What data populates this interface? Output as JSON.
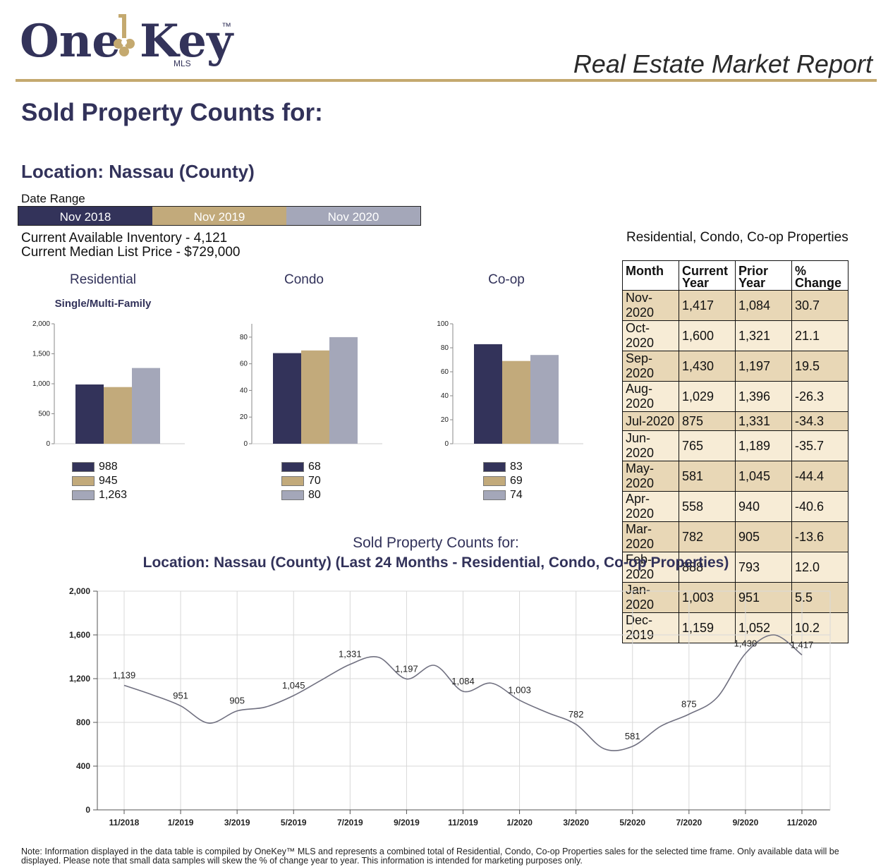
{
  "brand": {
    "name_part1": "One",
    "name_part2": "Key",
    "trademark": "™",
    "mls": "MLS"
  },
  "report_title": "Real Estate Market Report",
  "page_title": "Sold Property Counts for:",
  "location_line": "Location: Nassau (County)",
  "date_range": {
    "label": "Date Range",
    "periods": [
      {
        "label": "Nov 2018",
        "color": "#33335a"
      },
      {
        "label": "Nov 2019",
        "color": "#c2aa7b"
      },
      {
        "label": "Nov 2020",
        "color": "#a4a7b9"
      }
    ]
  },
  "inventory_line": "Current Available Inventory - 4,121",
  "median_price_line": "Current Median List Price - $729,000",
  "colors": {
    "navy": "#33335a",
    "tan": "#c2aa7b",
    "gray": "#a4a7b9",
    "gold_rule": "#c4a96f"
  },
  "chart_data": [
    {
      "type": "bar",
      "title": "Residential",
      "subtitle": "Single/Multi-Family",
      "categories": [
        "Nov 2018",
        "Nov 2019",
        "Nov 2020"
      ],
      "values": [
        988,
        945,
        1263
      ],
      "value_labels": [
        "988",
        "945",
        "1,263"
      ],
      "ylim": [
        0,
        2000
      ],
      "yticks": [
        0,
        500,
        1000,
        1500,
        2000
      ],
      "ytick_labels": [
        "0",
        "500",
        "1,000",
        "1,500",
        "2,000"
      ]
    },
    {
      "type": "bar",
      "title": "Condo",
      "subtitle": "",
      "categories": [
        "Nov 2018",
        "Nov 2019",
        "Nov 2020"
      ],
      "values": [
        68,
        70,
        80
      ],
      "value_labels": [
        "68",
        "70",
        "80"
      ],
      "ylim": [
        0,
        90
      ],
      "yticks": [
        0,
        20,
        40,
        60,
        80
      ],
      "ytick_labels": [
        "0",
        "20",
        "40",
        "60",
        "80"
      ]
    },
    {
      "type": "bar",
      "title": "Co-op",
      "subtitle": "",
      "categories": [
        "Nov 2018",
        "Nov 2019",
        "Nov 2020"
      ],
      "values": [
        83,
        69,
        74
      ],
      "value_labels": [
        "83",
        "69",
        "74"
      ],
      "ylim": [
        0,
        100
      ],
      "yticks": [
        0,
        20,
        40,
        60,
        80,
        100
      ],
      "ytick_labels": [
        "0",
        "20",
        "40",
        "60",
        "80",
        "100"
      ]
    },
    {
      "type": "table",
      "caption": "Residential, Condo, Co-op Properties",
      "columns": [
        "Month",
        "Current Year",
        "Prior Year",
        "% Change"
      ],
      "rows": [
        [
          "Nov-2020",
          "1,417",
          "1,084",
          "30.7"
        ],
        [
          "Oct-2020",
          "1,600",
          "1,321",
          "21.1"
        ],
        [
          "Sep-2020",
          "1,430",
          "1,197",
          "19.5"
        ],
        [
          "Aug-2020",
          "1,029",
          "1,396",
          "-26.3"
        ],
        [
          "Jul-2020",
          "875",
          "1,331",
          "-34.3"
        ],
        [
          "Jun-2020",
          "765",
          "1,189",
          "-35.7"
        ],
        [
          "May-2020",
          "581",
          "1,045",
          "-44.4"
        ],
        [
          "Apr-2020",
          "558",
          "940",
          "-40.6"
        ],
        [
          "Mar-2020",
          "782",
          "905",
          "-13.6"
        ],
        [
          "Feb-2020",
          "888",
          "793",
          "12.0"
        ],
        [
          "Jan-2020",
          "1,003",
          "951",
          "5.5"
        ],
        [
          "Dec-2019",
          "1,159",
          "1,052",
          "10.2"
        ]
      ]
    },
    {
      "type": "line",
      "title": "Sold Property Counts for:",
      "subtitle": "Location: Nassau (County) (Last 24 Months - Residential, Condo, Co-op Properties)",
      "x": [
        "11/2018",
        "12/2018",
        "1/2019",
        "2/2019",
        "3/2019",
        "4/2019",
        "5/2019",
        "6/2019",
        "7/2019",
        "8/2019",
        "9/2019",
        "10/2019",
        "11/2019",
        "12/2019",
        "1/2020",
        "2/2020",
        "3/2020",
        "4/2020",
        "5/2020",
        "6/2020",
        "7/2020",
        "8/2020",
        "9/2020",
        "10/2020",
        "11/2020"
      ],
      "values": [
        1139,
        1052,
        951,
        793,
        905,
        940,
        1045,
        1189,
        1331,
        1396,
        1197,
        1321,
        1084,
        1159,
        1003,
        888,
        782,
        558,
        581,
        765,
        875,
        1029,
        1430,
        1600,
        1417
      ],
      "point_labels": [
        {
          "index": 0,
          "text": "1,139"
        },
        {
          "index": 2,
          "text": "951"
        },
        {
          "index": 4,
          "text": "905"
        },
        {
          "index": 6,
          "text": "1,045"
        },
        {
          "index": 8,
          "text": "1,331"
        },
        {
          "index": 10,
          "text": "1,197"
        },
        {
          "index": 12,
          "text": "1,084"
        },
        {
          "index": 14,
          "text": "1,003"
        },
        {
          "index": 16,
          "text": "782"
        },
        {
          "index": 18,
          "text": "581"
        },
        {
          "index": 20,
          "text": "875"
        },
        {
          "index": 22,
          "text": "1,430"
        },
        {
          "index": 24,
          "text": "1,417"
        }
      ],
      "xtick_labels": [
        "11/2018",
        "1/2019",
        "3/2019",
        "5/2019",
        "7/2019",
        "9/2019",
        "11/2019",
        "1/2020",
        "3/2020",
        "5/2020",
        "7/2020",
        "9/2020",
        "11/2020"
      ],
      "ylim": [
        0,
        2000
      ],
      "yticks": [
        0,
        400,
        800,
        1200,
        1600,
        2000
      ],
      "ytick_labels": [
        "0",
        "400",
        "800",
        "1,200",
        "1,600",
        "2,000"
      ],
      "grid": true
    }
  ],
  "footnote": "Note: Information displayed in the data table is compiled by OneKey™ MLS and represents a combined total of Residential, Condo, Co-op Properties sales for the selected time frame. Only available data will be displayed. Please note that small data samples will skew the % of change year to year. This information is intended for marketing purposes only."
}
